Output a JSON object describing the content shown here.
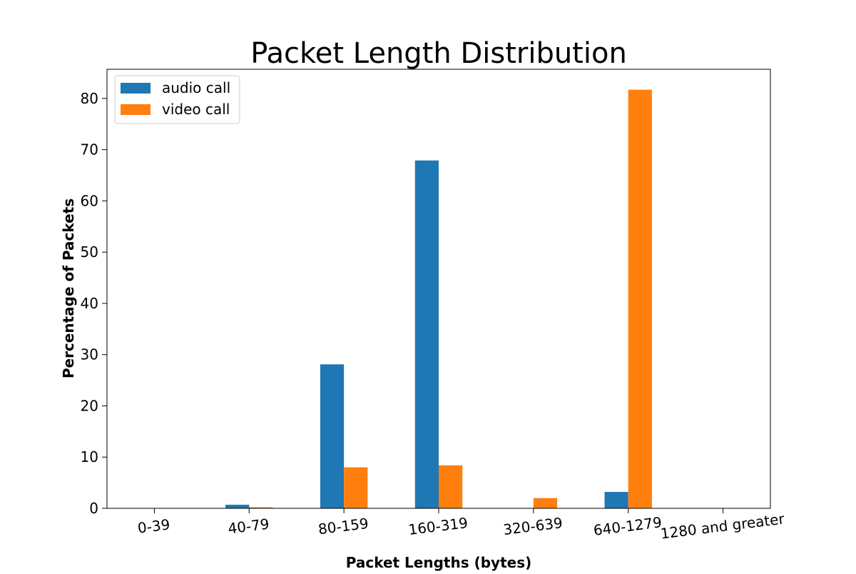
{
  "chart_data": {
    "type": "bar",
    "title": "Packet Length Distribution",
    "xlabel": "Packet Lengths (bytes)",
    "ylabel": "Percentage of Packets",
    "categories": [
      "0-39",
      "40-79",
      "80-159",
      "160-319",
      "320-639",
      "640-1279",
      "1280 and greater"
    ],
    "series": [
      {
        "name": "audio call",
        "color": "#1f77b4",
        "values": [
          0,
          0.7,
          28.1,
          67.9,
          0,
          3.2,
          0
        ]
      },
      {
        "name": "video call",
        "color": "#ff7f0e",
        "values": [
          0,
          0.2,
          8.0,
          8.4,
          2.0,
          81.7,
          0
        ]
      }
    ],
    "ylim": [
      0,
      85.7
    ],
    "yticks": [
      0,
      10,
      20,
      30,
      40,
      50,
      60,
      70,
      80
    ],
    "legend": "top-left",
    "grid": false
  }
}
